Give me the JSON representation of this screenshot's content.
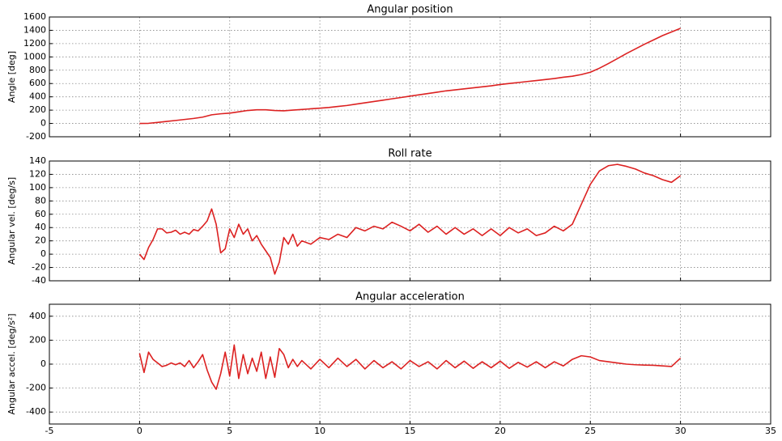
{
  "chart_data": [
    {
      "type": "line",
      "title": "Angular position",
      "y_label": "Angle [deg]",
      "color": "#dc2121",
      "grid": true,
      "xlim": [
        -5,
        35
      ],
      "xticks": [
        -5,
        0,
        5,
        10,
        15,
        20,
        25,
        30,
        35
      ],
      "show_xtick_labels": false,
      "ylim": [
        -200,
        1600
      ],
      "yticks": [
        -200,
        0,
        200,
        400,
        600,
        800,
        1000,
        1200,
        1400,
        1600
      ],
      "x": [
        0,
        0.5,
        1,
        1.5,
        2,
        2.5,
        3,
        3.5,
        4,
        4.5,
        5,
        5.5,
        6,
        6.5,
        7,
        7.5,
        8,
        8.5,
        9,
        9.5,
        10,
        10.5,
        11,
        11.5,
        12,
        12.5,
        13,
        13.5,
        14,
        14.5,
        15,
        15.5,
        16,
        16.5,
        17,
        17.5,
        18,
        18.5,
        19,
        19.5,
        20,
        20.5,
        21,
        21.5,
        22,
        22.5,
        23,
        23.5,
        24,
        24.5,
        25,
        25.5,
        26,
        26.5,
        27,
        27.5,
        28,
        28.5,
        29,
        29.5,
        30
      ],
      "values": [
        0,
        2,
        15,
        30,
        45,
        60,
        75,
        95,
        130,
        145,
        155,
        175,
        195,
        205,
        205,
        195,
        190,
        200,
        210,
        220,
        230,
        240,
        255,
        270,
        290,
        310,
        330,
        350,
        370,
        390,
        410,
        430,
        450,
        470,
        490,
        505,
        520,
        535,
        550,
        565,
        585,
        600,
        615,
        630,
        645,
        660,
        675,
        695,
        710,
        735,
        770,
        830,
        900,
        975,
        1050,
        1120,
        1190,
        1255,
        1320,
        1375,
        1430
      ]
    },
    {
      "type": "line",
      "title": "Roll rate",
      "y_label": "Angular vel. [deg/s]",
      "color": "#dc2121",
      "grid": true,
      "xlim": [
        -5,
        35
      ],
      "xticks": [
        -5,
        0,
        5,
        10,
        15,
        20,
        25,
        30,
        35
      ],
      "show_xtick_labels": false,
      "ylim": [
        -40,
        140
      ],
      "yticks": [
        -40,
        -20,
        0,
        20,
        40,
        60,
        80,
        100,
        120,
        140
      ],
      "x": [
        0,
        0.25,
        0.5,
        0.75,
        1,
        1.25,
        1.5,
        1.75,
        2,
        2.25,
        2.5,
        2.75,
        3,
        3.25,
        3.5,
        3.75,
        4,
        4.25,
        4.5,
        4.75,
        5,
        5.25,
        5.5,
        5.75,
        6,
        6.25,
        6.5,
        6.75,
        7,
        7.25,
        7.5,
        7.75,
        8,
        8.25,
        8.5,
        8.75,
        9,
        9.5,
        10,
        10.5,
        11,
        11.5,
        12,
        12.5,
        13,
        13.5,
        14,
        14.5,
        15,
        15.5,
        16,
        16.5,
        17,
        17.5,
        18,
        18.5,
        19,
        19.5,
        20,
        20.5,
        21,
        21.5,
        22,
        22.5,
        23,
        23.5,
        24,
        24.5,
        25,
        25.5,
        26,
        26.5,
        27,
        27.5,
        28,
        28.5,
        29,
        29.5,
        30
      ],
      "values": [
        0,
        -8,
        10,
        22,
        38,
        38,
        32,
        33,
        36,
        30,
        33,
        30,
        37,
        35,
        42,
        50,
        68,
        45,
        2,
        8,
        38,
        25,
        45,
        30,
        38,
        20,
        28,
        15,
        5,
        -5,
        -30,
        -12,
        25,
        15,
        30,
        12,
        20,
        15,
        25,
        22,
        30,
        25,
        40,
        35,
        42,
        38,
        48,
        42,
        35,
        45,
        33,
        42,
        30,
        40,
        30,
        38,
        28,
        38,
        28,
        40,
        32,
        38,
        28,
        32,
        42,
        35,
        45,
        75,
        105,
        125,
        133,
        135,
        132,
        128,
        122,
        118,
        112,
        108,
        118
      ]
    },
    {
      "type": "line",
      "title": "Angular acceleration",
      "y_label": "Angular accel. [deg/s²]",
      "color": "#dc2121",
      "grid": true,
      "xlim": [
        -5,
        35
      ],
      "xticks": [
        -5,
        0,
        5,
        10,
        15,
        20,
        25,
        30,
        35
      ],
      "show_xtick_labels": true,
      "ylim": [
        -500,
        500
      ],
      "yticks": [
        -400,
        -200,
        0,
        200,
        400
      ],
      "x": [
        0,
        0.25,
        0.5,
        0.75,
        1,
        1.25,
        1.5,
        1.75,
        2,
        2.25,
        2.5,
        2.75,
        3,
        3.25,
        3.5,
        3.75,
        4,
        4.25,
        4.5,
        4.75,
        5,
        5.25,
        5.5,
        5.75,
        6,
        6.25,
        6.5,
        6.75,
        7,
        7.25,
        7.5,
        7.75,
        8,
        8.25,
        8.5,
        8.75,
        9,
        9.5,
        10,
        10.5,
        11,
        11.5,
        12,
        12.5,
        13,
        13.5,
        14,
        14.5,
        15,
        15.5,
        16,
        16.5,
        17,
        17.5,
        18,
        18.5,
        19,
        19.5,
        20,
        20.5,
        21,
        21.5,
        22,
        22.5,
        23,
        23.5,
        24,
        24.5,
        25,
        25.5,
        26,
        26.5,
        27,
        27.5,
        28,
        28.5,
        29,
        29.5,
        30
      ],
      "values": [
        90,
        -70,
        100,
        40,
        10,
        -20,
        -10,
        10,
        -5,
        10,
        -20,
        30,
        -30,
        20,
        80,
        -50,
        -150,
        -210,
        -80,
        100,
        -100,
        160,
        -120,
        80,
        -80,
        50,
        -60,
        100,
        -120,
        60,
        -110,
        130,
        80,
        -30,
        40,
        -20,
        30,
        -40,
        40,
        -30,
        50,
        -20,
        40,
        -40,
        30,
        -30,
        20,
        -40,
        30,
        -20,
        20,
        -40,
        30,
        -30,
        25,
        -35,
        20,
        -30,
        25,
        -35,
        15,
        -25,
        20,
        -30,
        20,
        -15,
        40,
        70,
        60,
        30,
        20,
        10,
        0,
        -5,
        -8,
        -10,
        -15,
        -20,
        50
      ]
    }
  ]
}
